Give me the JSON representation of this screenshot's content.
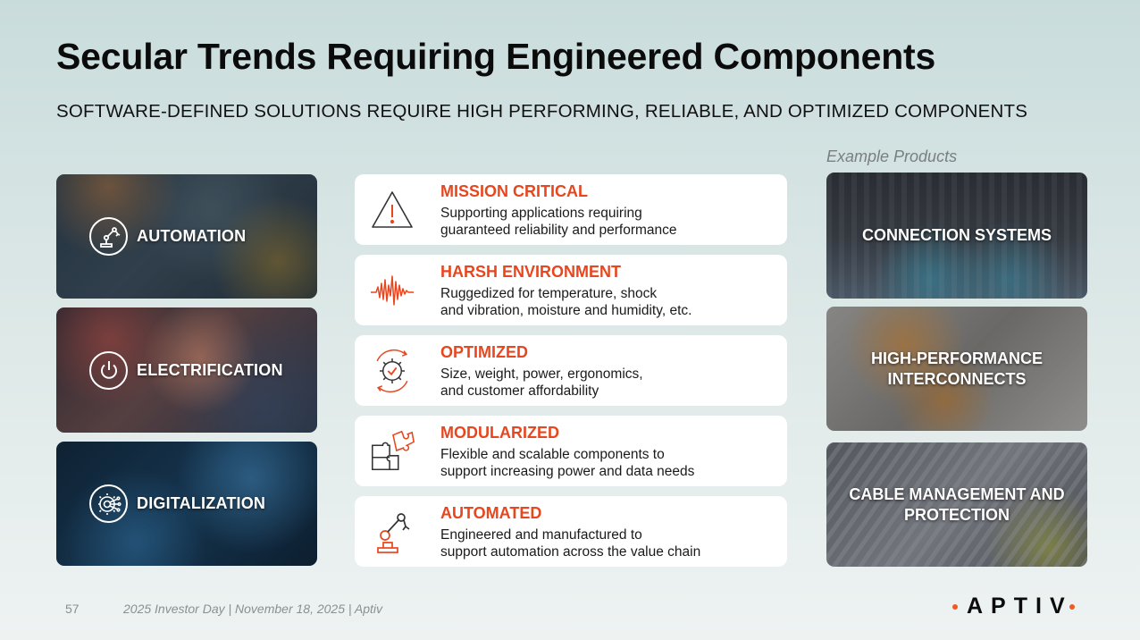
{
  "header": {
    "title": "Secular Trends Requiring Engineered Components",
    "subtitle": "SOFTWARE-DEFINED SOLUTIONS REQUIRE HIGH PERFORMING, RELIABLE, AND OPTIMIZED COMPONENTS"
  },
  "trends": [
    {
      "label": "AUTOMATION",
      "icon": "robot-arm-icon"
    },
    {
      "label": "ELECTRIFICATION",
      "icon": "power-icon"
    },
    {
      "label": "DIGITALIZATION",
      "icon": "gear-network-icon"
    }
  ],
  "requirements": [
    {
      "title": "MISSION CRITICAL",
      "line1": "Supporting applications requiring",
      "line2": "guaranteed reliability and performance",
      "icon": "warning-triangle-icon"
    },
    {
      "title": "HARSH ENVIRONMENT",
      "line1": "Ruggedized for temperature, shock",
      "line2": "and vibration, moisture and humidity, etc.",
      "icon": "waveform-icon"
    },
    {
      "title": "OPTIMIZED",
      "line1": "Size, weight, power, ergonomics,",
      "line2": "and customer affordability",
      "icon": "gear-check-icon"
    },
    {
      "title": "MODULARIZED",
      "line1": "Flexible and scalable components to",
      "line2": "support increasing power and data needs",
      "icon": "puzzle-icon"
    },
    {
      "title": "AUTOMATED",
      "line1": "Engineered and manufactured to",
      "line2": "support automation across the value chain",
      "icon": "robot-arm-icon"
    }
  ],
  "products": {
    "heading": "Example Products",
    "items": [
      {
        "line1": "CONNECTION SYSTEMS",
        "line2": ""
      },
      {
        "line1": "HIGH-PERFORMANCE",
        "line2": "INTERCONNECTS"
      },
      {
        "line1": "CABLE MANAGEMENT AND",
        "line2": "PROTECTION"
      }
    ]
  },
  "footer": {
    "page_number": "57",
    "text": "2025 Investor Day | November 18, 2025 | Aptiv",
    "logo": "APTIV"
  },
  "colors": {
    "accent": "#e8461e",
    "logo_dot": "#f05a22"
  }
}
